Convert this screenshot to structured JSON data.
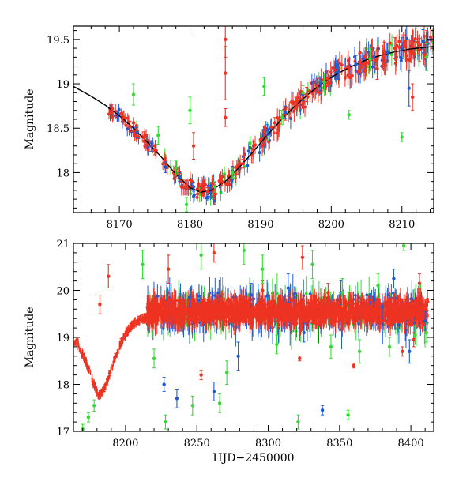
{
  "chart_data": [
    {
      "type": "scatter",
      "title": "",
      "xlabel": "",
      "ylabel": "Magnitude",
      "xlim": [
        8163.5,
        8214.5
      ],
      "ylim": [
        19.65,
        17.55
      ],
      "y_inverted": true,
      "grid": false,
      "x_ticks": [
        8170,
        8180,
        8190,
        8200,
        8210
      ],
      "y_ticks": [
        18,
        18.5,
        19,
        19.5
      ],
      "colors": {
        "red": "#ee3322",
        "blue": "#1f5ad8",
        "green": "#33dd33",
        "model": "#000000"
      },
      "model_curve": {
        "color": "#000000",
        "x": [
          8163.5,
          8166,
          8168,
          8170,
          8172,
          8174,
          8176,
          8178,
          8180,
          8181.5,
          8183,
          8185,
          8187,
          8189,
          8191,
          8193,
          8195,
          8197,
          8199,
          8201,
          8203,
          8205,
          8207,
          8209,
          8211,
          8214.5
        ],
        "y": [
          18.97,
          18.86,
          18.76,
          18.64,
          18.5,
          18.34,
          18.17,
          17.98,
          17.83,
          17.78,
          17.8,
          17.9,
          18.06,
          18.24,
          18.43,
          18.6,
          18.76,
          18.9,
          19.02,
          19.12,
          19.2,
          19.27,
          19.32,
          19.36,
          19.39,
          19.42
        ]
      },
      "series": [
        {
          "color": "#ee3322",
          "points": [
            [
              8169,
              18.72,
              0.05
            ],
            [
              8170.5,
              18.63,
              0.05
            ],
            [
              8171.5,
              18.52,
              0.06
            ],
            [
              8172.5,
              18.47,
              0.06
            ],
            [
              8173.5,
              18.4,
              0.06
            ],
            [
              8175,
              18.25,
              0.05
            ],
            [
              8176.5,
              18.12,
              0.05
            ],
            [
              8178,
              17.98,
              0.05
            ],
            [
              8179.5,
              17.86,
              0.05
            ],
            [
              8180.5,
              18.3,
              0.15
            ],
            [
              8181.5,
              17.8,
              0.04
            ],
            [
              8182.5,
              17.79,
              0.04
            ],
            [
              8183.5,
              17.85,
              0.04
            ],
            [
              8184.5,
              17.9,
              0.05
            ],
            [
              8185,
              18.62,
              0.1
            ],
            [
              8185,
              19.12,
              0.3
            ],
            [
              8185,
              19.5,
              0.2
            ],
            [
              8186,
              17.98,
              0.05
            ],
            [
              8187.5,
              18.1,
              0.05
            ],
            [
              8189,
              18.3,
              0.05
            ],
            [
              8190.5,
              18.46,
              0.06
            ],
            [
              8192,
              18.56,
              0.06
            ],
            [
              8193.5,
              18.66,
              0.07
            ],
            [
              8195,
              18.78,
              0.07
            ],
            [
              8196.5,
              18.88,
              0.08
            ],
            [
              8198,
              18.98,
              0.08
            ],
            [
              8199.5,
              19.06,
              0.09
            ],
            [
              8201,
              19.15,
              0.09
            ],
            [
              8202.5,
              19.18,
              0.1
            ],
            [
              8204,
              19.24,
              0.1
            ],
            [
              8205.5,
              19.3,
              0.1
            ],
            [
              8206.5,
              19.17,
              0.12
            ],
            [
              8207.5,
              19.35,
              0.12
            ],
            [
              8209,
              19.4,
              0.12
            ],
            [
              8210.5,
              19.42,
              0.13
            ],
            [
              8211.5,
              18.85,
              0.15
            ],
            [
              8212.5,
              19.38,
              0.13
            ],
            [
              8213.5,
              19.46,
              0.14
            ]
          ]
        },
        {
          "color": "#1f5ad8",
          "points": [
            [
              8172.5,
              18.45,
              0.06
            ],
            [
              8174.5,
              18.3,
              0.06
            ],
            [
              8176.5,
              18.06,
              0.06
            ],
            [
              8178.5,
              17.95,
              0.05
            ],
            [
              8180.5,
              17.84,
              0.05
            ],
            [
              8182.5,
              17.72,
              0.04
            ],
            [
              8183.5,
              17.68,
              0.04
            ],
            [
              8186,
              18.02,
              0.05
            ],
            [
              8188.5,
              18.28,
              0.06
            ],
            [
              8191,
              18.48,
              0.06
            ],
            [
              8193.5,
              18.68,
              0.07
            ],
            [
              8196,
              18.88,
              0.07
            ],
            [
              8198.5,
              19.0,
              0.08
            ],
            [
              8201,
              19.14,
              0.09
            ],
            [
              8203.5,
              19.22,
              0.1
            ],
            [
              8206,
              19.3,
              0.1
            ],
            [
              8208,
              19.35,
              0.11
            ],
            [
              8210,
              19.4,
              0.12
            ],
            [
              8211,
              18.95,
              0.2
            ],
            [
              8213,
              19.48,
              0.13
            ]
          ]
        },
        {
          "color": "#33dd33",
          "points": [
            [
              8172,
              18.88,
              0.12
            ],
            [
              8175.5,
              18.42,
              0.1
            ],
            [
              8178,
              18.05,
              0.08
            ],
            [
              8179.5,
              17.64,
              0.08
            ],
            [
              8180,
              18.7,
              0.15
            ],
            [
              8183.5,
              17.84,
              0.06
            ],
            [
              8186,
              18.0,
              0.06
            ],
            [
              8188.5,
              18.33,
              0.07
            ],
            [
              8190.5,
              18.97,
              0.1
            ],
            [
              8193,
              18.62,
              0.08
            ],
            [
              8196,
              18.9,
              0.08
            ],
            [
              8199,
              19.02,
              0.1
            ],
            [
              8202.5,
              18.65,
              0.05
            ],
            [
              8205.5,
              19.28,
              0.12
            ],
            [
              8210,
              18.4,
              0.05
            ],
            [
              8213.5,
              19.3,
              0.15
            ]
          ]
        }
      ]
    },
    {
      "type": "scatter",
      "title": "",
      "xlabel": "HJD−2450000",
      "ylabel": "Magnitude",
      "xlim": [
        8163.5,
        8416
      ],
      "ylim": [
        21,
        17
      ],
      "y_inverted": true,
      "grid": false,
      "x_ticks": [
        8200,
        8250,
        8300,
        8350,
        8400
      ],
      "y_ticks": [
        17,
        18,
        19,
        20,
        21
      ],
      "colors": {
        "red": "#ee3322",
        "blue": "#1f5ad8",
        "green": "#33dd33"
      },
      "band": {
        "color": "#ee3322",
        "x_start": 8215,
        "x_end": 8412,
        "center": 19.55,
        "halfwidth": 0.28
      },
      "series": [
        {
          "color": "#ee3322",
          "points": [
            [
              8166,
              18.95,
              0.05
            ],
            [
              8170,
              18.64,
              0.05
            ],
            [
              8174,
              18.34,
              0.05
            ],
            [
              8178,
              17.98,
              0.05
            ],
            [
              8181.5,
              17.78,
              0.05
            ],
            [
              8185,
              17.9,
              0.05
            ],
            [
              8189,
              18.24,
              0.06
            ],
            [
              8193,
              18.6,
              0.06
            ],
            [
              8197,
              18.9,
              0.07
            ],
            [
              8201,
              19.12,
              0.08
            ],
            [
              8205,
              19.27,
              0.08
            ],
            [
              8209,
              19.36,
              0.09
            ],
            [
              8213,
              19.4,
              0.1
            ],
            [
              8182,
              19.7,
              0.2
            ],
            [
              8188,
              20.3,
              0.25
            ],
            [
              8230,
              20.45,
              0.3
            ],
            [
              8262,
              20.8,
              0.2
            ],
            [
              8296,
              20.0,
              0.2
            ],
            [
              8322,
              18.55,
              0.05
            ],
            [
              8360,
              18.4,
              0.05
            ],
            [
              8394,
              18.7,
              0.1
            ],
            [
              8396,
              19.5,
              0.3
            ],
            [
              8402,
              18.95,
              0.15
            ],
            [
              8406,
              20.15,
              0.2
            ],
            [
              8253,
              18.2,
              0.1
            ],
            [
              8324,
              20.7,
              0.25
            ],
            [
              8342,
              19.95,
              0.2
            ]
          ]
        },
        {
          "color": "#1f5ad8",
          "points": [
            [
              8227,
              18.0,
              0.15
            ],
            [
              8236,
              17.7,
              0.2
            ],
            [
              8262,
              17.85,
              0.2
            ],
            [
              8279,
              18.6,
              0.3
            ],
            [
              8314,
              20.05,
              0.3
            ],
            [
              8325,
              19.1,
              0.2
            ],
            [
              8338,
              17.45,
              0.1
            ],
            [
              8351,
              19.95,
              0.25
            ],
            [
              8374,
              19.85,
              0.2
            ],
            [
              8380,
              19.65,
              0.25
            ],
            [
              8388,
              20.25,
              0.2
            ],
            [
              8399,
              18.7,
              0.25
            ],
            [
              8410,
              19.35,
              0.2
            ],
            [
              8288,
              19.9,
              0.25
            ],
            [
              8245,
              19.85,
              0.2
            ]
          ]
        },
        {
          "color": "#33dd33",
          "points": [
            [
              8170,
              17.05,
              0.1
            ],
            [
              8174,
              17.3,
              0.1
            ],
            [
              8178,
              17.55,
              0.12
            ],
            [
              8212,
              20.55,
              0.3
            ],
            [
              8220,
              18.55,
              0.2
            ],
            [
              8228,
              17.2,
              0.15
            ],
            [
              8247,
              17.55,
              0.2
            ],
            [
              8253,
              20.75,
              0.3
            ],
            [
              8266,
              17.6,
              0.2
            ],
            [
              8271,
              18.25,
              0.25
            ],
            [
              8283,
              20.85,
              0.3
            ],
            [
              8296,
              20.45,
              0.3
            ],
            [
              8306,
              18.85,
              0.2
            ],
            [
              8321,
              17.2,
              0.15
            ],
            [
              8331,
              20.55,
              0.3
            ],
            [
              8344,
              18.8,
              0.25
            ],
            [
              8352,
              19.95,
              0.3
            ],
            [
              8356,
              17.35,
              0.1
            ],
            [
              8364,
              18.7,
              0.25
            ],
            [
              8377,
              20.1,
              0.25
            ],
            [
              8385,
              18.8,
              0.2
            ],
            [
              8395,
              20.95,
              0.1
            ],
            [
              8403,
              19.05,
              0.2
            ],
            [
              8411,
              19.1,
              0.2
            ]
          ]
        }
      ]
    }
  ]
}
